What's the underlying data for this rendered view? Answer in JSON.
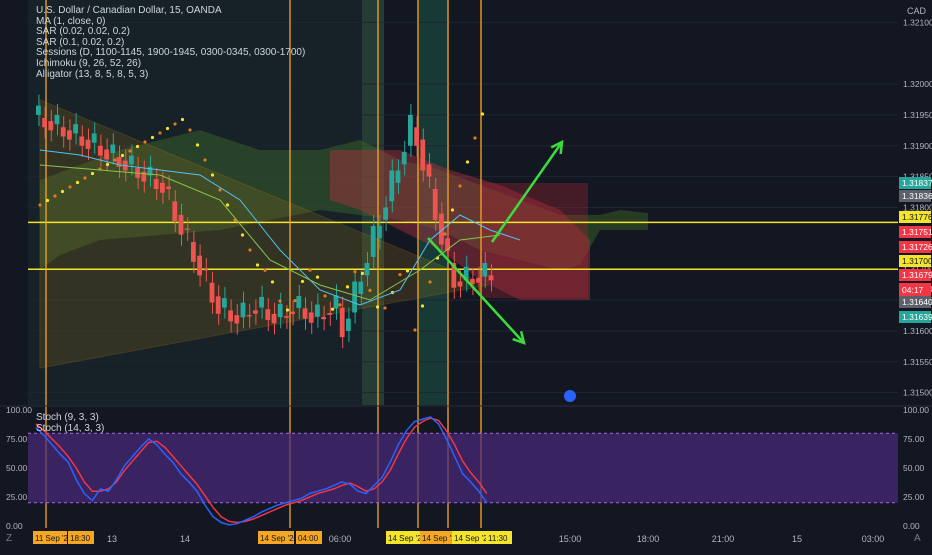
{
  "header": {
    "symbol_line": "U.S. Dollar / Canadian Dollar, 15, OANDA",
    "indicators": [
      "MA (1, close, 0)",
      "SAR (0.02, 0.02, 0.2)",
      "SAR (0.1, 0.02, 0.2)",
      "Sessions (D, 1100-1145, 1900-1945, 0300-0345, 0300-1700)",
      "Ichimoku (9, 26, 52, 26)",
      "Alligator (13, 8, 5, 8, 5, 3)"
    ],
    "currency": "CAD"
  },
  "stoch_legend": [
    "Stoch (9, 3, 3)",
    "Stoch (14, 3, 3)"
  ],
  "corner_labels": {
    "bottom_left": "Z",
    "bottom_right": "A"
  },
  "colors": {
    "background": "#131722",
    "bull": "#26a69a",
    "bear": "#ef5350",
    "hline": "#f5e52a",
    "vline": "#f5a623",
    "arrow": "#3ddc3d",
    "sar": "#f5e52a",
    "stoch_k": "#2962ff",
    "stoch_d": "#f23645",
    "stoch_band": "#4a2a7a"
  },
  "chart_data": {
    "type": "candlestick",
    "price_axis": {
      "range": [
        0.3148,
        1.3212
      ],
      "ticks": [
        "1.32100",
        "1.32000",
        "1.31950",
        "1.31900",
        "1.31850",
        "1.31800",
        "1.31700",
        "1.31650",
        "1.31600",
        "1.31550",
        "1.31500"
      ],
      "labels": [
        {
          "text": "1.31837",
          "color": "#26a69a"
        },
        {
          "text": "1.31836",
          "color": "#5d606b"
        },
        {
          "text": "1.31776",
          "color": "#f5e52a"
        },
        {
          "text": "1.31751",
          "color": "#f23645"
        },
        {
          "text": "1.31726",
          "color": "#f23645"
        },
        {
          "text": "1.31700",
          "color": "#f5e52a"
        },
        {
          "text": "1.31679",
          "color": "#f23645"
        },
        {
          "text": "1.31640",
          "color": "#f23645"
        },
        {
          "text": "04:17",
          "color": "#f23645"
        },
        {
          "text": "1.31640",
          "color": "#5d606b"
        },
        {
          "text": "1.31639",
          "color": "#26a69a"
        }
      ]
    },
    "horizontal_lines": [
      1.31776,
      1.317
    ],
    "time_axis": {
      "ticks": [
        "13",
        "14",
        "06:00",
        "15:00",
        "18:00",
        "21:00",
        "15",
        "03:00"
      ],
      "highlighted": [
        "11 Sep '20",
        "18:30",
        "14 Sep '20",
        "04:00",
        "14 Sep '20",
        "14 Sep '20",
        "14 Sep '20",
        "11:30"
      ]
    },
    "stochastic": {
      "axis_ticks": [
        "100.00",
        "75.00",
        "50.00",
        "25.00",
        "0.00"
      ],
      "band": [
        20,
        80
      ],
      "k": [
        85,
        78,
        70,
        62,
        55,
        40,
        28,
        22,
        32,
        30,
        40,
        52,
        60,
        68,
        75,
        70,
        62,
        55,
        45,
        38,
        30,
        18,
        8,
        3,
        1,
        2,
        5,
        8,
        12,
        15,
        18,
        20,
        22,
        24,
        28,
        30,
        32,
        35,
        38,
        36,
        30,
        28,
        35,
        42,
        55,
        70,
        82,
        90,
        92,
        94,
        88,
        75,
        60,
        45,
        38,
        30,
        20
      ],
      "d": [
        88,
        82,
        75,
        68,
        60,
        50,
        38,
        30,
        30,
        32,
        38,
        48,
        56,
        64,
        72,
        73,
        68,
        60,
        52,
        44,
        36,
        26,
        16,
        8,
        4,
        3,
        4,
        6,
        9,
        12,
        15,
        18,
        20,
        22,
        25,
        28,
        30,
        32,
        35,
        37,
        34,
        30,
        32,
        38,
        48,
        62,
        75,
        85,
        90,
        93,
        91,
        82,
        70,
        56,
        46,
        38,
        28
      ]
    }
  }
}
